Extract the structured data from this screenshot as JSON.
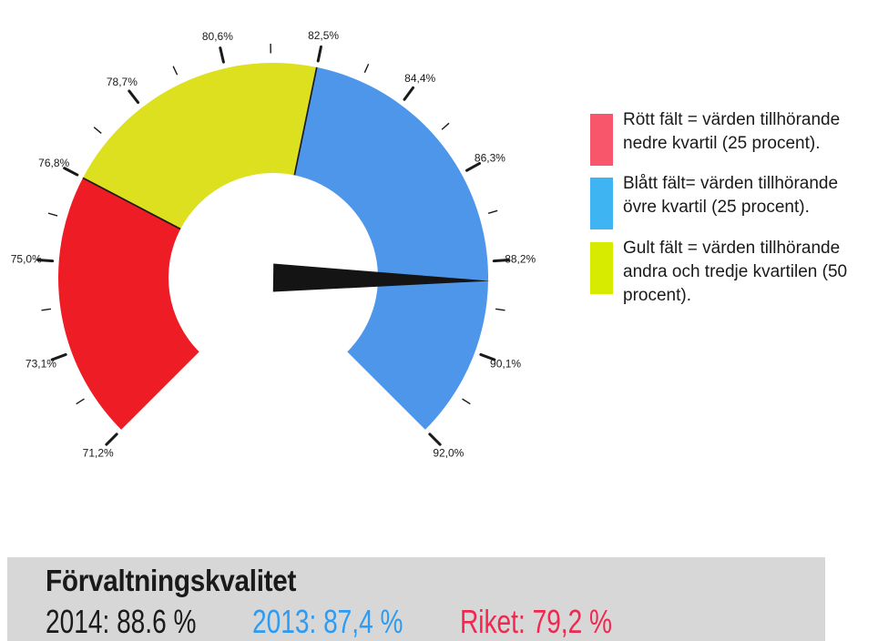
{
  "chart_data": {
    "type": "gauge",
    "min": 71.2,
    "max": 92.0,
    "start_angle_deg": 225,
    "end_angle_deg": -45,
    "ticks": [
      {
        "value": 71.2,
        "label": "71,2%"
      },
      {
        "value": 73.1,
        "label": "73,1%"
      },
      {
        "value": 75.0,
        "label": "75,0%"
      },
      {
        "value": 76.8,
        "label": "76,8%"
      },
      {
        "value": 78.7,
        "label": "78,7%"
      },
      {
        "value": 80.6,
        "label": "80,6%"
      },
      {
        "value": 82.5,
        "label": "82,5%"
      },
      {
        "value": 84.4,
        "label": "84,4%"
      },
      {
        "value": 86.3,
        "label": "86,3%"
      },
      {
        "value": 88.2,
        "label": "88,2%"
      },
      {
        "value": 90.1,
        "label": "90,1%"
      },
      {
        "value": 92.0,
        "label": "92,0%"
      }
    ],
    "segments": [
      {
        "name": "red",
        "from": 71.2,
        "to": 76.8,
        "color": "#ee1c25"
      },
      {
        "name": "yellow",
        "from": 76.8,
        "to": 82.5,
        "color": "#dde01f"
      },
      {
        "name": "blue",
        "from": 82.5,
        "to": 92.0,
        "color": "#4e96ea"
      }
    ],
    "needle": {
      "value": 88.6,
      "color": "#141414"
    },
    "tick_color": "#1a1a1a",
    "label_color": "#1a1a1a"
  },
  "legend": {
    "items": [
      {
        "swatch_color": "#f8566b",
        "label": "Rött fält = värden tillhörande\nnedre kvartil (25 procent)."
      },
      {
        "swatch_color": "#3eb4f2",
        "label": "Blått fält= värden tillhörande\növre kvartil (25 procent)."
      },
      {
        "swatch_color": "#d7eb00",
        "label": "Gult fält = värden tillhörande\nandra och tredje kvartilen (50\nprocent)."
      }
    ]
  },
  "footer": {
    "background": "#d7d7d7",
    "title": "Förvaltningskvalitet",
    "values": [
      {
        "label": "2014: 88.6 %",
        "color": "#1a1a1a"
      },
      {
        "label": "2013: 87,4 %",
        "color": "#2e9bf2"
      },
      {
        "label": "Riket: 79,2 %",
        "color": "#f0274f"
      }
    ]
  }
}
